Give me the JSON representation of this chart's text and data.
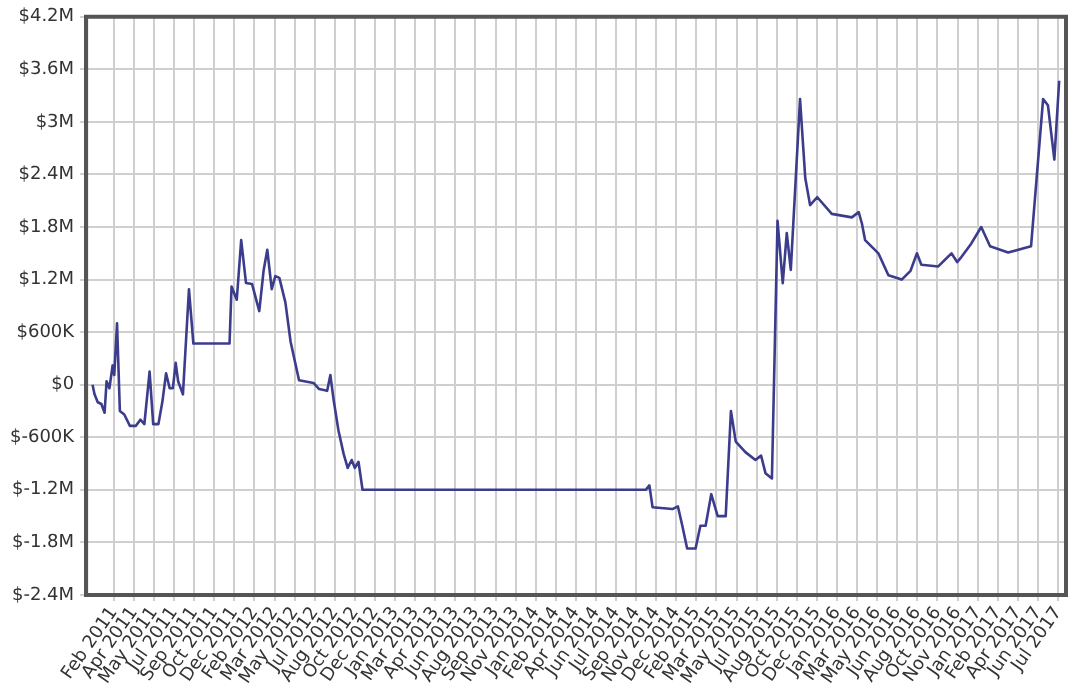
{
  "chart_data": {
    "type": "line",
    "xlim": [
      "2010-12-13",
      "2017-08-17"
    ],
    "ylim": [
      -2400000,
      4200000
    ],
    "yticks": [
      {
        "value": -2400000,
        "label": "$-2.4M"
      },
      {
        "value": -1800000,
        "label": "$-1.8M"
      },
      {
        "value": -1200000,
        "label": "$-1.2M"
      },
      {
        "value": -600000,
        "label": "$-600K"
      },
      {
        "value": 0,
        "label": "$0"
      },
      {
        "value": 600000,
        "label": "$600K"
      },
      {
        "value": 1200000,
        "label": "$1.2M"
      },
      {
        "value": 1800000,
        "label": "$1.8M"
      },
      {
        "value": 2400000,
        "label": "$2.4M"
      },
      {
        "value": 3000000,
        "label": "$3M"
      },
      {
        "value": 3600000,
        "label": "$3.6M"
      },
      {
        "value": 4200000,
        "label": "$4.2M"
      }
    ],
    "xticks": [
      {
        "value": "2011-02-20",
        "label": "Feb 2011"
      },
      {
        "value": "2011-04-11",
        "label": "Apr 2011"
      },
      {
        "value": "2011-05-31",
        "label": "May 2011"
      },
      {
        "value": "2011-07-20",
        "label": "Jul 2011"
      },
      {
        "value": "2011-09-08",
        "label": "Sep 2011"
      },
      {
        "value": "2011-10-28",
        "label": "Oct 2011"
      },
      {
        "value": "2011-12-17",
        "label": "Dec 2011"
      },
      {
        "value": "2012-02-05",
        "label": "Feb 2012"
      },
      {
        "value": "2012-03-26",
        "label": "Mar 2012"
      },
      {
        "value": "2012-05-15",
        "label": "May 2012"
      },
      {
        "value": "2012-07-04",
        "label": "Jul 2012"
      },
      {
        "value": "2012-08-23",
        "label": "Aug 2012"
      },
      {
        "value": "2012-10-12",
        "label": "Oct 2012"
      },
      {
        "value": "2012-12-01",
        "label": "Dec 2012"
      },
      {
        "value": "2013-01-20",
        "label": "Jan 2013"
      },
      {
        "value": "2013-03-11",
        "label": "Mar 2013"
      },
      {
        "value": "2013-04-30",
        "label": "Apr 2013"
      },
      {
        "value": "2013-06-19",
        "label": "Jun 2013"
      },
      {
        "value": "2013-08-08",
        "label": "Aug 2013"
      },
      {
        "value": "2013-09-27",
        "label": "Sep 2013"
      },
      {
        "value": "2013-11-16",
        "label": "Nov 2013"
      },
      {
        "value": "2014-01-05",
        "label": "Jan 2014"
      },
      {
        "value": "2014-02-24",
        "label": "Feb 2014"
      },
      {
        "value": "2014-04-15",
        "label": "Apr 2014"
      },
      {
        "value": "2014-06-04",
        "label": "Jun 2014"
      },
      {
        "value": "2014-07-24",
        "label": "Jul 2014"
      },
      {
        "value": "2014-09-12",
        "label": "Sep 2014"
      },
      {
        "value": "2014-11-01",
        "label": "Nov 2014"
      },
      {
        "value": "2014-12-21",
        "label": "Dec 2014"
      },
      {
        "value": "2015-02-09",
        "label": "Feb 2015"
      },
      {
        "value": "2015-03-31",
        "label": "Mar 2015"
      },
      {
        "value": "2015-05-20",
        "label": "May 2015"
      },
      {
        "value": "2015-07-09",
        "label": "Jul 2015"
      },
      {
        "value": "2015-08-28",
        "label": "Aug 2015"
      },
      {
        "value": "2015-10-17",
        "label": "Oct 2015"
      },
      {
        "value": "2015-12-06",
        "label": "Dec 2015"
      },
      {
        "value": "2016-01-25",
        "label": "Jan 2016"
      },
      {
        "value": "2016-03-15",
        "label": "Mar 2016"
      },
      {
        "value": "2016-05-04",
        "label": "May 2016"
      },
      {
        "value": "2016-06-23",
        "label": "Jun 2016"
      },
      {
        "value": "2016-08-12",
        "label": "Aug 2016"
      },
      {
        "value": "2016-10-01",
        "label": "Oct 2016"
      },
      {
        "value": "2016-11-20",
        "label": "Nov 2016"
      },
      {
        "value": "2017-01-09",
        "label": "Jan 2017"
      },
      {
        "value": "2017-02-28",
        "label": "Feb 2017"
      },
      {
        "value": "2017-04-19",
        "label": "Apr 2017"
      },
      {
        "value": "2017-06-08",
        "label": "Jun 2017"
      },
      {
        "value": "2017-07-28",
        "label": "Jul 2017"
      }
    ],
    "grid": true,
    "legend": false,
    "marker": "none",
    "line_style": "solid",
    "series": [
      {
        "color": "#3c3c8c",
        "x": [
          "2010-12-29",
          "2011-01-03",
          "2011-01-11",
          "2011-01-20",
          "2011-01-28",
          "2011-02-02",
          "2011-02-09",
          "2011-02-17",
          "2011-02-21",
          "2011-02-28",
          "2011-03-07",
          "2011-03-18",
          "2011-04-01",
          "2011-04-16",
          "2011-04-27",
          "2011-05-07",
          "2011-05-20",
          "2011-05-29",
          "2011-06-11",
          "2011-06-21",
          "2011-06-30",
          "2011-07-09",
          "2011-07-17",
          "2011-07-24",
          "2011-07-30",
          "2011-08-11",
          "2011-08-26",
          "2011-09-06",
          "2011-12-05",
          "2011-12-10",
          "2011-12-23",
          "2012-01-03",
          "2012-01-15",
          "2012-01-30",
          "2012-02-17",
          "2012-02-28",
          "2012-03-08",
          "2012-03-19",
          "2012-03-28",
          "2012-04-07",
          "2012-04-22",
          "2012-05-05",
          "2012-05-16",
          "2012-05-26",
          "2012-07-01",
          "2012-07-15",
          "2012-08-04",
          "2012-08-12",
          "2012-08-20",
          "2012-09-01",
          "2012-09-14",
          "2012-09-24",
          "2012-10-04",
          "2012-10-12",
          "2012-10-21",
          "2012-10-31",
          "2014-10-06",
          "2014-10-15",
          "2014-10-23",
          "2014-12-11",
          "2014-12-25",
          "2015-01-05",
          "2015-01-17",
          "2015-02-07",
          "2015-02-19",
          "2015-03-04",
          "2015-03-18",
          "2015-04-03",
          "2015-04-23",
          "2015-05-06",
          "2015-05-18",
          "2015-06-11",
          "2015-07-06",
          "2015-07-20",
          "2015-07-31",
          "2015-08-16",
          "2015-08-30",
          "2015-09-12",
          "2015-09-22",
          "2015-10-02",
          "2015-10-25",
          "2015-11-07",
          "2015-11-19",
          "2015-12-07",
          "2016-01-12",
          "2016-03-02",
          "2016-03-19",
          "2016-03-27",
          "2016-04-04",
          "2016-05-07",
          "2016-06-01",
          "2016-07-04",
          "2016-07-26",
          "2016-08-11",
          "2016-08-22",
          "2016-10-03",
          "2016-11-05",
          "2016-11-19",
          "2016-11-30",
          "2016-12-24",
          "2017-01-18",
          "2017-02-09",
          "2017-03-26",
          "2017-05-22",
          "2017-06-21",
          "2017-07-03",
          "2017-07-19",
          "2017-07-31"
        ],
        "values": [
          0,
          -110000,
          -200000,
          -220000,
          -320000,
          40000,
          -40000,
          220000,
          110000,
          700000,
          -300000,
          -340000,
          -470000,
          -470000,
          -400000,
          -450000,
          150000,
          -450000,
          -450000,
          -190000,
          130000,
          -40000,
          -40000,
          250000,
          40000,
          -110000,
          1090000,
          470000,
          470000,
          1120000,
          970000,
          1650000,
          1160000,
          1150000,
          840000,
          1310000,
          1540000,
          1090000,
          1240000,
          1220000,
          940000,
          490000,
          260000,
          50000,
          20000,
          -50000,
          -70000,
          110000,
          -170000,
          -520000,
          -790000,
          -950000,
          -860000,
          -950000,
          -880000,
          -1200000,
          -1200000,
          -1150000,
          -1400000,
          -1420000,
          -1390000,
          -1610000,
          -1870000,
          -1870000,
          -1610000,
          -1610000,
          -1250000,
          -1500000,
          -1500000,
          -300000,
          -650000,
          -770000,
          -860000,
          -810000,
          -1010000,
          -1070000,
          1870000,
          1160000,
          1730000,
          1310000,
          3260000,
          2360000,
          2050000,
          2140000,
          1950000,
          1910000,
          1970000,
          1840000,
          1650000,
          1500000,
          1250000,
          1200000,
          1300000,
          1500000,
          1370000,
          1350000,
          1500000,
          1400000,
          1460000,
          1610000,
          1800000,
          1580000,
          1510000,
          1580000,
          3260000,
          3190000,
          2570000,
          3470000
        ]
      }
    ]
  }
}
